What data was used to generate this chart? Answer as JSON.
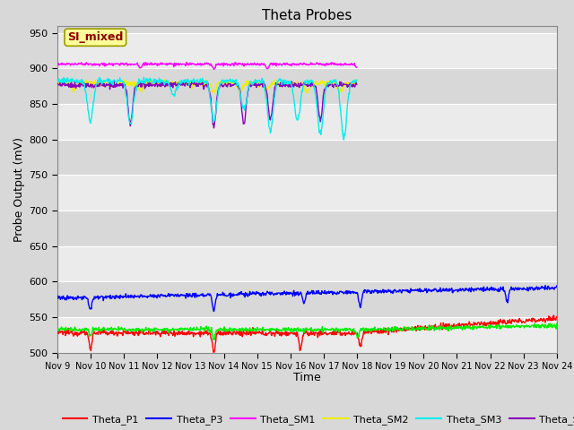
{
  "title": "Theta Probes",
  "xlabel": "Time",
  "ylabel": "Probe Output (mV)",
  "annotation_text": "SI_mixed",
  "annotation_color": "#8B0000",
  "annotation_bg": "#FFFF99",
  "annotation_border": "#999900",
  "ylim": [
    500,
    960
  ],
  "yticks": [
    500,
    550,
    600,
    650,
    700,
    750,
    800,
    850,
    900,
    950
  ],
  "bg_color": "#D8D8D8",
  "plot_bg_light": "#EBEBEB",
  "plot_bg_dark": "#D8D8D8",
  "grid_color": "#FFFFFF",
  "series": {
    "Theta_P1": {
      "color": "#FF0000"
    },
    "Theta_P2": {
      "color": "#00EE00"
    },
    "Theta_P3": {
      "color": "#0000FF"
    },
    "Theta_SM1": {
      "color": "#FF00FF"
    },
    "Theta_SM2": {
      "color": "#EEEE00"
    },
    "Theta_SM3": {
      "color": "#00EEEE"
    },
    "Theta_SM4": {
      "color": "#8800BB"
    }
  },
  "xtick_labels": [
    "Nov 9",
    "Nov 10",
    "Nov 11",
    "Nov 12",
    "Nov 13",
    "Nov 14",
    "Nov 15",
    "Nov 16",
    "Nov 17",
    "Nov 18",
    "Nov 19",
    "Nov 20",
    "Nov 21",
    "Nov 22",
    "Nov 23",
    "Nov 24"
  ]
}
